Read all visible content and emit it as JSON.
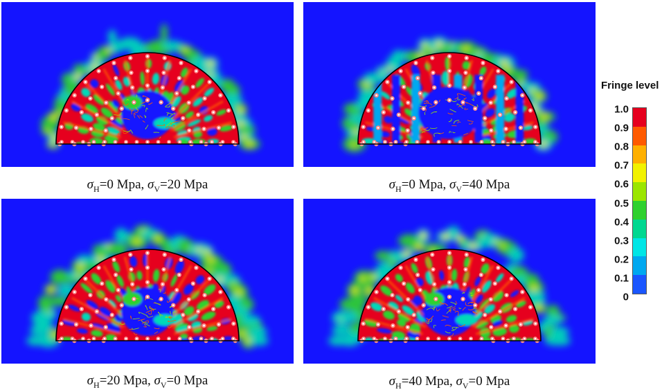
{
  "panels": [
    {
      "sh": "0",
      "sv": "20",
      "unit": "Mpa",
      "variant": "crown-spikes"
    },
    {
      "sh": "0",
      "sv": "40",
      "unit": "Mpa",
      "variant": "vertical-columns"
    },
    {
      "sh": "20",
      "sv": "0",
      "unit": "Mpa",
      "variant": "side-spread"
    },
    {
      "sh": "40",
      "sv": "0",
      "unit": "Mpa",
      "variant": "side-spread"
    }
  ],
  "legend": {
    "title": "Fringe level",
    "ticks": [
      "1.0",
      "0.9",
      "0.8",
      "0.7",
      "0.6",
      "0.5",
      "0.4",
      "0.3",
      "0.2",
      "0.1",
      "0"
    ],
    "colors": [
      "#e6001e",
      "#ff5a00",
      "#ffb000",
      "#f2f200",
      "#9be600",
      "#2ed12e",
      "#00d890",
      "#00e6e6",
      "#00a8f0",
      "#1a56ff",
      "#1414ff"
    ]
  },
  "colors": {
    "background": "#1414ff",
    "outline": "#000000"
  }
}
